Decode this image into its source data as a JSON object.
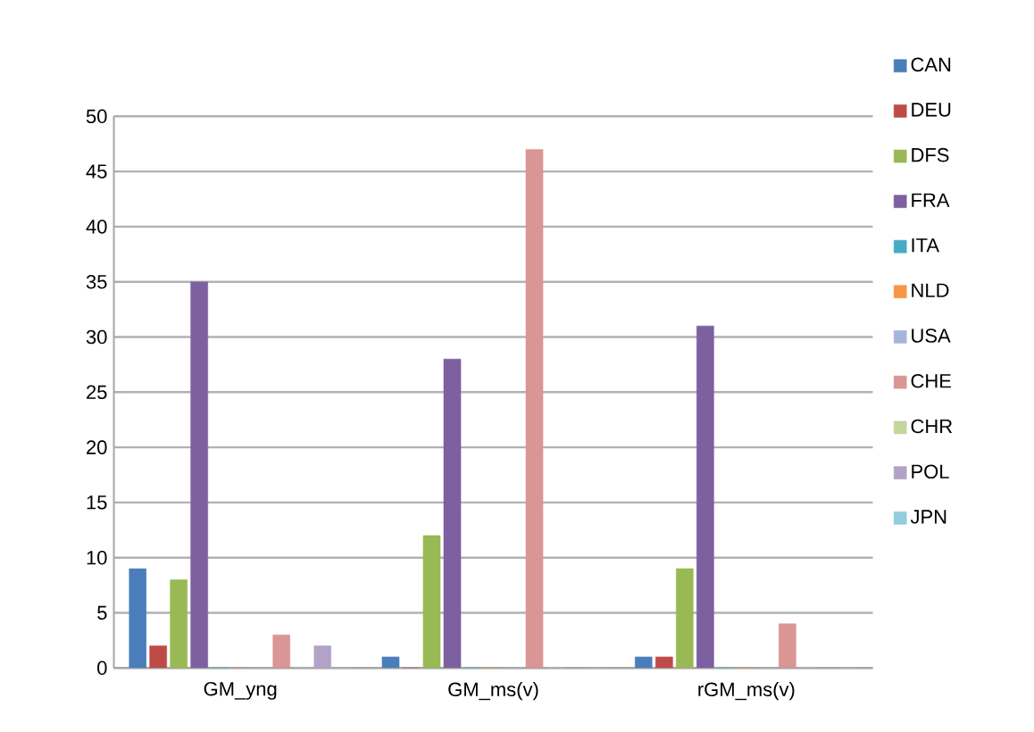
{
  "chart_data": {
    "type": "bar",
    "categories": [
      "GM_yng",
      "GM_ms(v)",
      "rGM_ms(v)"
    ],
    "series": [
      {
        "name": "CAN",
        "color": "#4a7ebb",
        "values": [
          9,
          1,
          1
        ]
      },
      {
        "name": "DEU",
        "color": "#be4b48",
        "values": [
          2,
          0,
          1
        ]
      },
      {
        "name": "DFS",
        "color": "#98b954",
        "values": [
          8,
          12,
          9
        ]
      },
      {
        "name": "FRA",
        "color": "#7d60a0",
        "values": [
          35,
          28,
          31
        ]
      },
      {
        "name": "ITA",
        "color": "#46aac5",
        "values": [
          0,
          0,
          0
        ]
      },
      {
        "name": "NLD",
        "color": "#f79646",
        "values": [
          0,
          0,
          0
        ]
      },
      {
        "name": "USA",
        "color": "#a5b6d8",
        "values": [
          0,
          0,
          0
        ]
      },
      {
        "name": "CHE",
        "color": "#d99694",
        "values": [
          3,
          47,
          4
        ]
      },
      {
        "name": "CHR",
        "color": "#c3d69b",
        "values": [
          0,
          0,
          0
        ]
      },
      {
        "name": "POL",
        "color": "#b3a2c7",
        "values": [
          2,
          0,
          0
        ]
      },
      {
        "name": "JPN",
        "color": "#93cddd",
        "values": [
          0,
          0,
          0
        ]
      }
    ],
    "ylim": [
      0,
      50
    ],
    "yticks": [
      0,
      5,
      10,
      15,
      20,
      25,
      30,
      35,
      40,
      45,
      50
    ],
    "grid": "y",
    "legend": "right"
  }
}
